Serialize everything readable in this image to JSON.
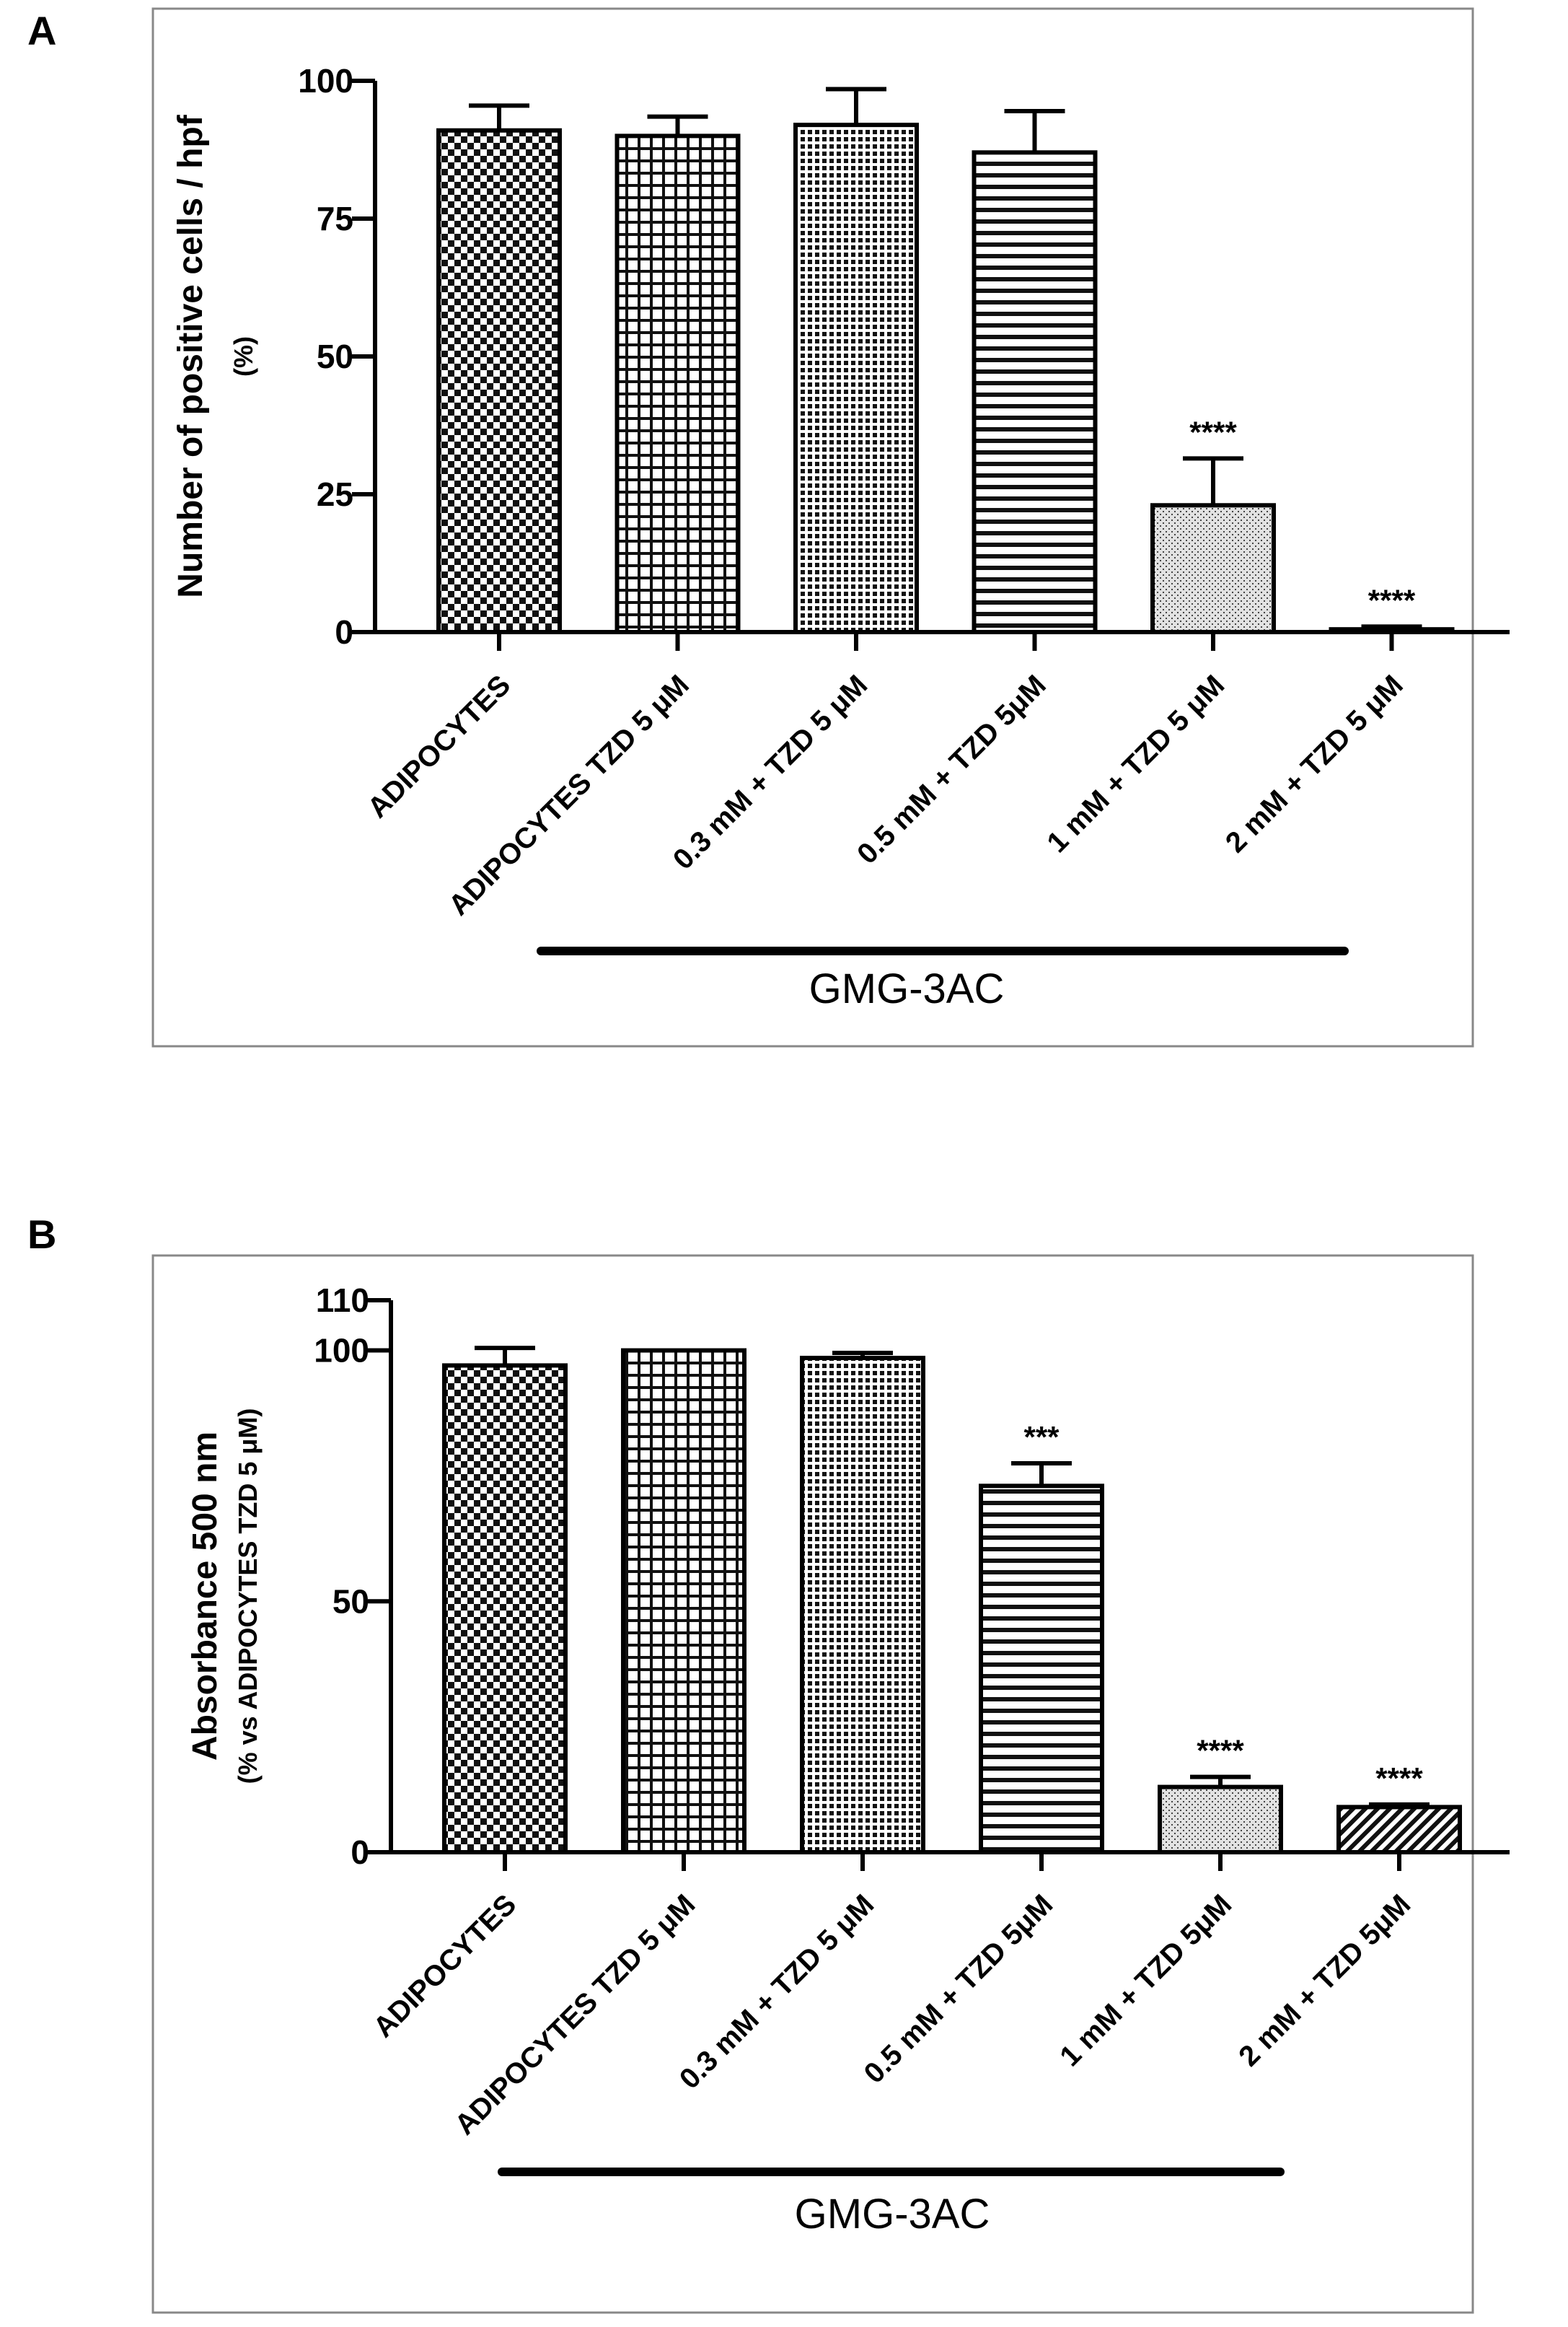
{
  "chart_data": [
    {
      "panel": "A",
      "type": "bar",
      "title": "",
      "ylabel": "Number of positive cells / hpf",
      "ylabel2": "(%)",
      "ylim": [
        0,
        100
      ],
      "yticks": [
        0,
        25,
        50,
        75,
        100
      ],
      "categories": [
        "ADIPOCYTES",
        "ADIPOCYTES TZD 5 μM",
        "0.3 mM + TZD 5 μM",
        "0.5 mM + TZD 5μM",
        "1 mM + TZD 5 μM",
        "2 mM + TZD 5 μM"
      ],
      "values": [
        91,
        90,
        92,
        87,
        23,
        0.5
      ],
      "errors": [
        4.5,
        3.5,
        6.5,
        7.5,
        8.5,
        0.5
      ],
      "patterns": [
        "checker",
        "grid",
        "dots",
        "hlines",
        "stipple",
        "none"
      ],
      "significance": [
        "",
        "",
        "",
        "",
        "****",
        "****"
      ],
      "group_label": "GMG-3AC",
      "group_span": [
        1,
        5
      ]
    },
    {
      "panel": "B",
      "type": "bar",
      "title": "",
      "ylabel": "Absorbance 500 nm",
      "ylabel2": "(% vs ADIPOCYTES TZD 5 μM)",
      "ylim": [
        0,
        110
      ],
      "yticks": [
        0,
        50,
        100,
        110
      ],
      "categories": [
        "ADIPOCYTES",
        "ADIPOCYTES TZD 5 μM",
        "0.3 mM + TZD 5 μM",
        "0.5 mM + TZD 5μM",
        "1 mM + TZD 5μM",
        "2 mM + TZD 5μM"
      ],
      "values": [
        97,
        100,
        98.5,
        73,
        13,
        9
      ],
      "errors": [
        3.5,
        0,
        1,
        4.5,
        2,
        0.5
      ],
      "patterns": [
        "checker",
        "grid",
        "dots",
        "hlines",
        "stipple",
        "diag"
      ],
      "significance": [
        "",
        "",
        "",
        "***",
        "****",
        "****"
      ],
      "group_label": "GMG-3AC",
      "group_span": [
        0,
        4
      ]
    }
  ]
}
